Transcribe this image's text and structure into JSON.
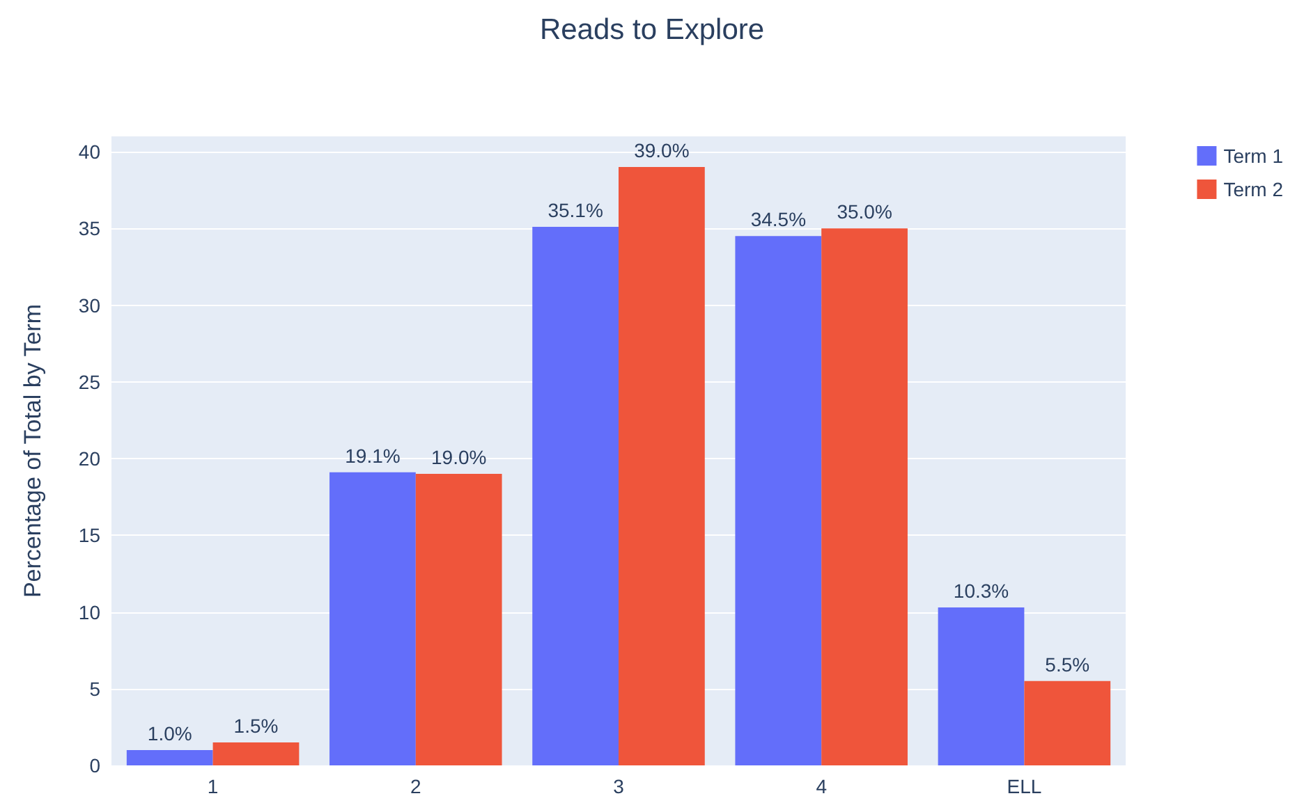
{
  "chart_data": {
    "type": "bar",
    "title": "Reads to Explore",
    "ylabel": "Percentage of Total by Term",
    "categories": [
      "1",
      "2",
      "3",
      "4",
      "ELL"
    ],
    "series": [
      {
        "name": "Term 1",
        "color": "#636efa",
        "values": [
          1.0,
          19.1,
          35.1,
          34.5,
          10.3
        ],
        "value_labels": [
          "1.0%",
          "19.1%",
          "35.1%",
          "34.5%",
          "10.3%"
        ]
      },
      {
        "name": "Term 2",
        "color": "#ef553b",
        "values": [
          1.5,
          19.0,
          39.0,
          35.0,
          5.5
        ],
        "value_labels": [
          "1.5%",
          "19.0%",
          "39.0%",
          "35.0%",
          "5.5%"
        ]
      }
    ],
    "ylim": [
      0,
      41
    ],
    "yticks": [
      0,
      5,
      10,
      15,
      20,
      25,
      30,
      35,
      40
    ],
    "grid": "y",
    "legend": "top right"
  }
}
